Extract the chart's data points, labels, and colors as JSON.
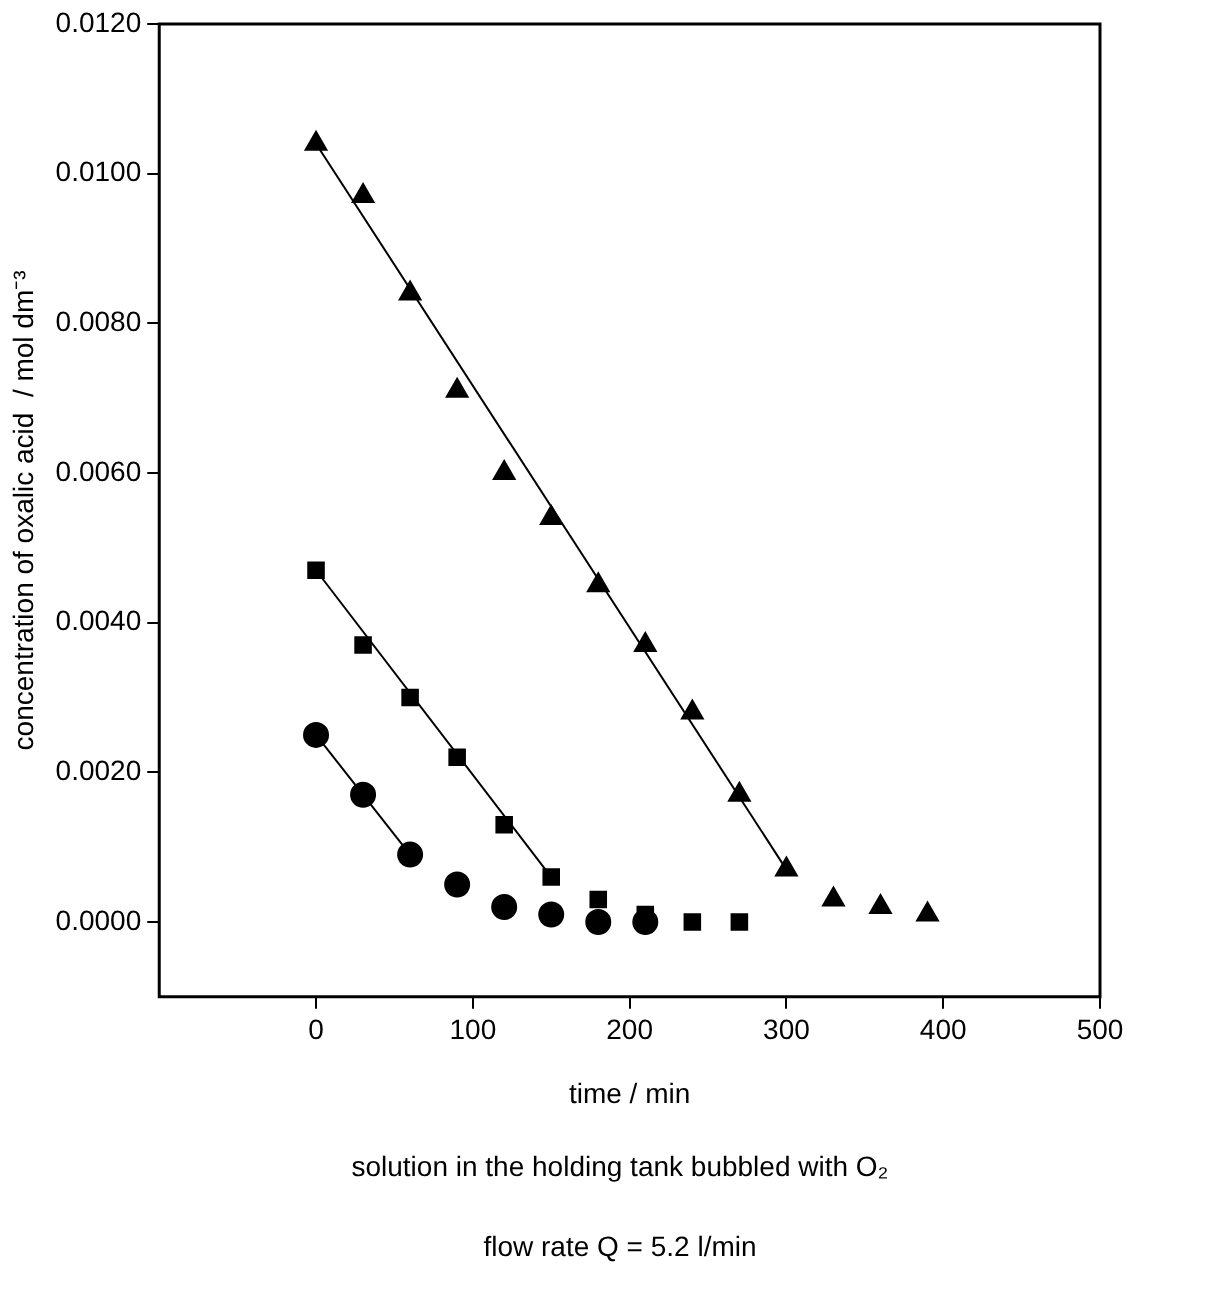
{
  "chart_data": {
    "type": "scatter",
    "xlabel": "time / min",
    "ylabel": "concentration of oxalic acid  / mol dm⁻³",
    "xlim": [
      -100,
      500
    ],
    "xticks": [
      0,
      100,
      200,
      300,
      400,
      500
    ],
    "ylim": [
      -0.001,
      0.012
    ],
    "yticks": [
      {
        "value": 0,
        "label": "0.0000"
      },
      {
        "value": 0.002,
        "label": "0.0020"
      },
      {
        "value": 0.004,
        "label": "0.0040"
      },
      {
        "value": 0.006,
        "label": "0.0060"
      },
      {
        "value": 0.008,
        "label": "0.0080"
      },
      {
        "value": 0.01,
        "label": "0.0100"
      },
      {
        "value": 0.012,
        "label": "0.0120"
      }
    ],
    "series": [
      {
        "marker": "triangle",
        "color": "#000000",
        "x": [
          0,
          30,
          60,
          90,
          120,
          150,
          180,
          210,
          240,
          270,
          300,
          330,
          360,
          390
        ],
        "values": [
          0.0104,
          0.0097,
          0.0084,
          0.0071,
          0.006,
          0.0054,
          0.0045,
          0.0037,
          0.0028,
          0.0017,
          0.0007,
          0.0003,
          0.0002,
          0.0001
        ]
      },
      {
        "marker": "square",
        "color": "#000000",
        "x": [
          0,
          30,
          60,
          90,
          120,
          150,
          180,
          210,
          240,
          270
        ],
        "values": [
          0.0047,
          0.0037,
          0.003,
          0.0022,
          0.0013,
          0.0006,
          0.0003,
          0.0001,
          0,
          0
        ]
      },
      {
        "marker": "circle",
        "color": "#000000",
        "x": [
          0,
          30,
          60,
          90,
          120,
          150,
          180,
          210
        ],
        "values": [
          0.0025,
          0.0017,
          0.0009,
          0.0005,
          0.0002,
          0.0001,
          0,
          0
        ]
      },
      {
        "type": "line",
        "marker": "none",
        "color": "#000000",
        "x": [
          0,
          300
        ],
        "values": [
          0.0104,
          0.0007
        ]
      },
      {
        "type": "line",
        "marker": "none",
        "color": "#000000",
        "x": [
          0,
          150
        ],
        "values": [
          0.0047,
          0.0006
        ]
      },
      {
        "type": "line",
        "marker": "none",
        "color": "#000000",
        "x": [
          0,
          60
        ],
        "values": [
          0.0025,
          0.0009
        ]
      }
    ],
    "annotations": [
      "solution in the holding tank bubbled with O₂",
      "flow rate Q = 5.2 l/min"
    ]
  }
}
